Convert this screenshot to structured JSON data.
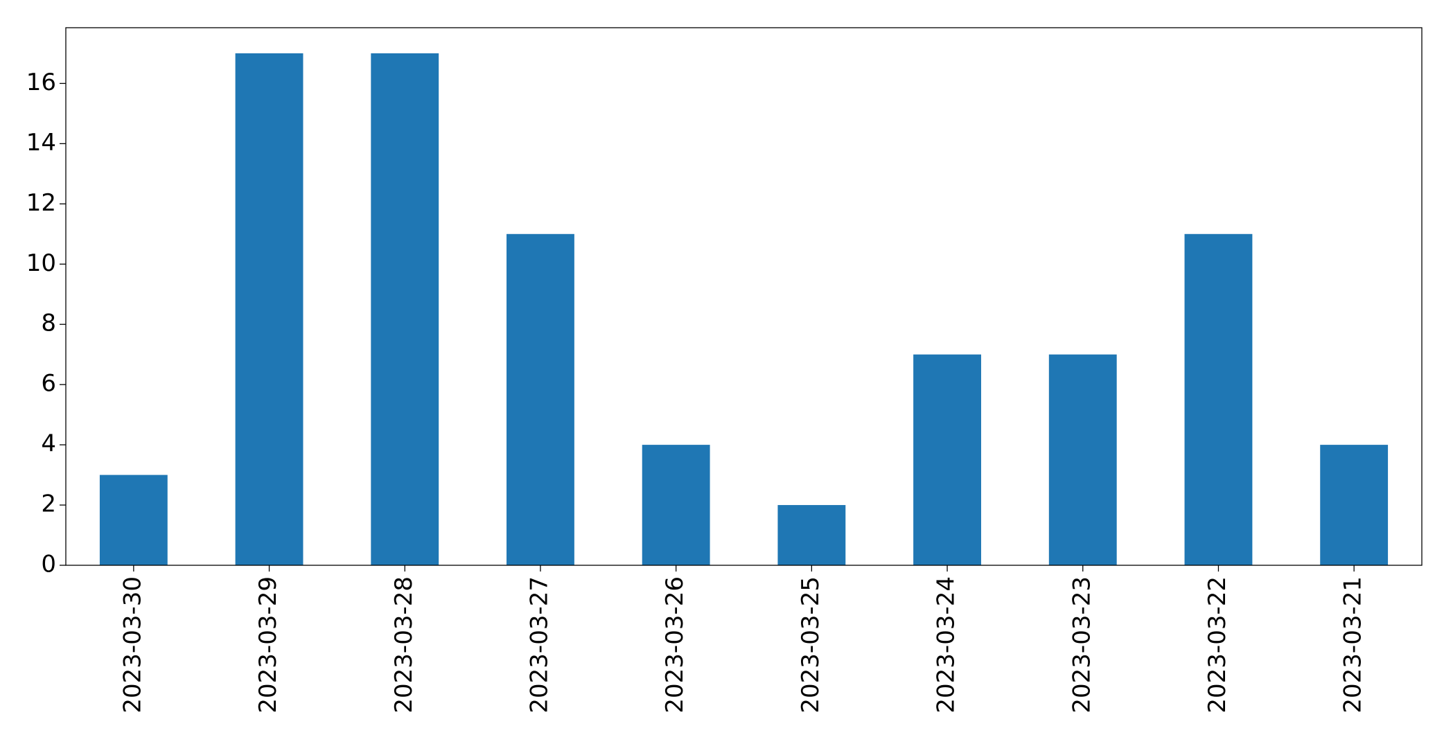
{
  "chart_data": {
    "type": "bar",
    "categories": [
      "2023-03-30",
      "2023-03-29",
      "2023-03-28",
      "2023-03-27",
      "2023-03-26",
      "2023-03-25",
      "2023-03-24",
      "2023-03-23",
      "2023-03-22",
      "2023-03-21"
    ],
    "values": [
      3,
      17,
      17,
      11,
      4,
      2,
      7,
      7,
      11,
      4
    ],
    "color": "#1f77b4",
    "ylim": [
      0,
      17.85
    ],
    "yticks": [
      0,
      2,
      4,
      6,
      8,
      10,
      12,
      14,
      16
    ],
    "grid": false
  }
}
